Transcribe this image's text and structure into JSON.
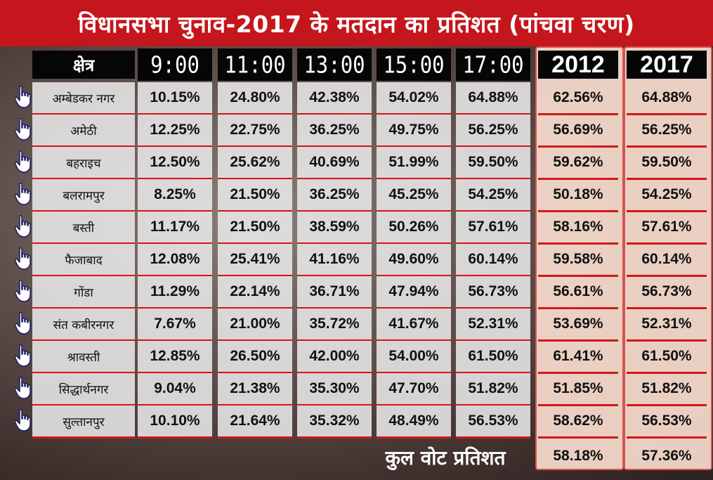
{
  "title": "विधानसभा चुनाव-2017 के मतदान का प्रतिशत (पांचवा चरण)",
  "headers": {
    "region": "क्षेत्र",
    "times": [
      "9:00",
      "11:00",
      "13:00",
      "15:00",
      "17:00"
    ],
    "years": [
      "2012",
      "2017"
    ]
  },
  "rows": [
    {
      "region": "अम्बेडकर नगर",
      "times": [
        "10.15%",
        "24.80%",
        "42.38%",
        "54.02%",
        "64.88%"
      ],
      "y2012": "62.56%",
      "y2017": "64.88%"
    },
    {
      "region": "अमेठी",
      "times": [
        "12.25%",
        "22.75%",
        "36.25%",
        "49.75%",
        "56.25%"
      ],
      "y2012": "56.69%",
      "y2017": "56.25%"
    },
    {
      "region": "बहराइच",
      "times": [
        "12.50%",
        "25.62%",
        "40.69%",
        "51.99%",
        "59.50%"
      ],
      "y2012": "59.62%",
      "y2017": "59.50%"
    },
    {
      "region": "बलरामपुर",
      "times": [
        "8.25%",
        "21.50%",
        "36.25%",
        "45.25%",
        "54.25%"
      ],
      "y2012": "50.18%",
      "y2017": "54.25%"
    },
    {
      "region": "बस्ती",
      "times": [
        "11.17%",
        "21.50%",
        "38.59%",
        "50.26%",
        "57.61%"
      ],
      "y2012": "58.16%",
      "y2017": "57.61%"
    },
    {
      "region": "फैजाबाद",
      "times": [
        "12.08%",
        "25.41%",
        "41.16%",
        "49.60%",
        "60.14%"
      ],
      "y2012": "59.58%",
      "y2017": "60.14%"
    },
    {
      "region": "गोंडा",
      "times": [
        "11.29%",
        "22.14%",
        "36.71%",
        "47.94%",
        "56.73%"
      ],
      "y2012": "56.61%",
      "y2017": "56.73%"
    },
    {
      "region": "संत कबीरनगर",
      "times": [
        "7.67%",
        "21.00%",
        "35.72%",
        "41.67%",
        "52.31%"
      ],
      "y2012": "53.69%",
      "y2017": "52.31%"
    },
    {
      "region": "श्रावस्ती",
      "times": [
        "12.85%",
        "26.50%",
        "42.00%",
        "54.00%",
        "61.50%"
      ],
      "y2012": "61.41%",
      "y2017": "61.50%"
    },
    {
      "region": "सिद्धार्थनगर",
      "times": [
        "9.04%",
        "21.38%",
        "35.30%",
        "47.70%",
        "51.82%"
      ],
      "y2012": "51.85%",
      "y2017": "51.82%"
    },
    {
      "region": "सुल्तानपुर",
      "times": [
        "10.10%",
        "21.64%",
        "35.32%",
        "48.49%",
        "56.53%"
      ],
      "y2012": "58.62%",
      "y2017": "56.53%"
    }
  ],
  "total": {
    "label": "कुल वोट प्रतिशत",
    "y2012": "58.18%",
    "y2017": "57.36%"
  },
  "icons": {
    "row_marker": "pointing-hand-icon"
  },
  "colors": {
    "title_bg": "#c4161c",
    "header_bg": "#060606",
    "row_divider": "#d01818",
    "year_panel": "#f6dcce"
  }
}
